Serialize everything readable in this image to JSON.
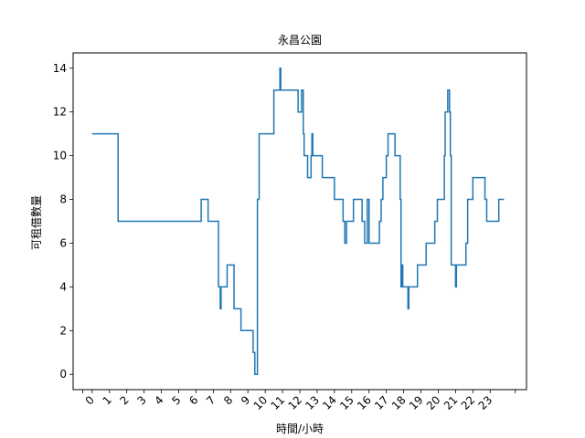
{
  "chart_data": {
    "type": "line",
    "title": "永昌公園",
    "xlabel": "時間/小時",
    "ylabel": "可租借數量",
    "xlim": [
      -1.1,
      25.1
    ],
    "ylim": [
      -0.7,
      14.7
    ],
    "x_ticks": [
      0,
      1,
      2,
      3,
      4,
      5,
      6,
      7,
      8,
      9,
      10,
      11,
      12,
      13,
      14,
      15,
      16,
      17,
      18,
      19,
      20,
      21,
      22,
      23
    ],
    "x_tick_labels": [
      "0",
      "1",
      "2",
      "3",
      "4",
      "5",
      "6",
      "7",
      "8",
      "9",
      "10",
      "11",
      "12",
      "13",
      "14",
      "15",
      "16",
      "17",
      "18",
      "19",
      "20",
      "21",
      "22",
      "23"
    ],
    "y_ticks": [
      0,
      2,
      4,
      6,
      8,
      10,
      12,
      14
    ],
    "y_tick_labels": [
      "0",
      "2",
      "4",
      "6",
      "8",
      "10",
      "12",
      "14"
    ],
    "grid": false,
    "step": "post",
    "series": [
      {
        "color": "#1f77b4",
        "points": [
          [
            0.0,
            11
          ],
          [
            1.5,
            7
          ],
          [
            6.3,
            8
          ],
          [
            6.7,
            7
          ],
          [
            7.3,
            4
          ],
          [
            7.4,
            3
          ],
          [
            7.45,
            4
          ],
          [
            7.8,
            5
          ],
          [
            8.2,
            3
          ],
          [
            8.6,
            2
          ],
          [
            9.3,
            1
          ],
          [
            9.4,
            0
          ],
          [
            9.55,
            8
          ],
          [
            9.65,
            11
          ],
          [
            10.5,
            13
          ],
          [
            10.85,
            14
          ],
          [
            10.9,
            13
          ],
          [
            11.9,
            12
          ],
          [
            12.1,
            13
          ],
          [
            12.2,
            11
          ],
          [
            12.25,
            10
          ],
          [
            12.45,
            9
          ],
          [
            12.65,
            10
          ],
          [
            12.7,
            11
          ],
          [
            12.75,
            10
          ],
          [
            13.3,
            9
          ],
          [
            14.0,
            8
          ],
          [
            14.5,
            7
          ],
          [
            14.6,
            6
          ],
          [
            14.7,
            7
          ],
          [
            15.1,
            8
          ],
          [
            15.6,
            7
          ],
          [
            15.75,
            6
          ],
          [
            15.9,
            8
          ],
          [
            16.0,
            6
          ],
          [
            16.6,
            7
          ],
          [
            16.7,
            8
          ],
          [
            16.8,
            9
          ],
          [
            17.0,
            10
          ],
          [
            17.1,
            11
          ],
          [
            17.5,
            10
          ],
          [
            17.8,
            8
          ],
          [
            17.85,
            4
          ],
          [
            17.9,
            5
          ],
          [
            17.95,
            4
          ],
          [
            18.25,
            3
          ],
          [
            18.3,
            4
          ],
          [
            18.8,
            5
          ],
          [
            19.3,
            6
          ],
          [
            19.8,
            7
          ],
          [
            19.95,
            8
          ],
          [
            20.35,
            10
          ],
          [
            20.4,
            12
          ],
          [
            20.55,
            13
          ],
          [
            20.65,
            12
          ],
          [
            20.7,
            10
          ],
          [
            20.75,
            5
          ],
          [
            21.0,
            4
          ],
          [
            21.05,
            5
          ],
          [
            21.6,
            6
          ],
          [
            21.7,
            8
          ],
          [
            22.0,
            9
          ],
          [
            22.7,
            8
          ],
          [
            22.8,
            7
          ],
          [
            23.5,
            8
          ],
          [
            23.8,
            8
          ]
        ]
      }
    ]
  }
}
